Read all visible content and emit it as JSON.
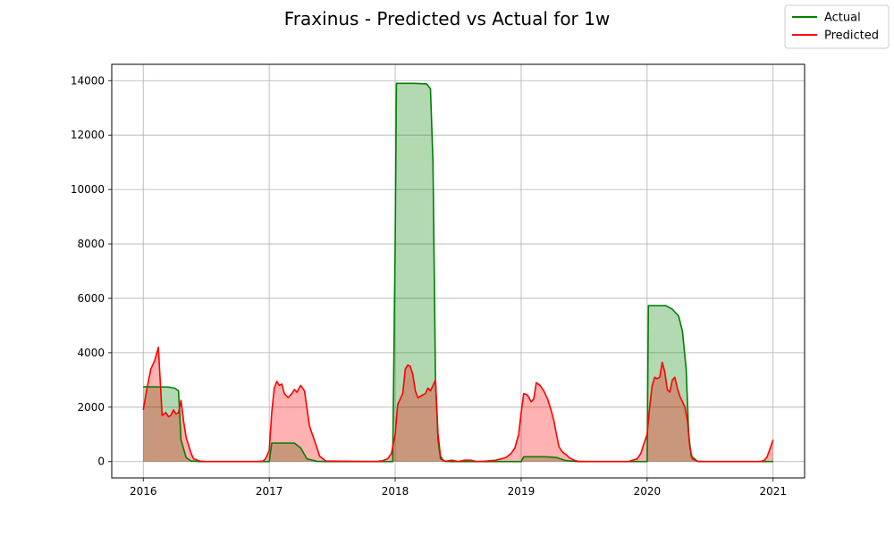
{
  "chart_data": {
    "type": "area",
    "title": "Fraxinus - Predicted vs Actual for 1w",
    "xlabel": "",
    "ylabel": "",
    "xlim": [
      2015.75,
      2021.25
    ],
    "ylim": [
      -600,
      14600
    ],
    "xticks": [
      2016,
      2017,
      2018,
      2019,
      2020,
      2021
    ],
    "xtick_labels": [
      "2016",
      "2017",
      "2018",
      "2019",
      "2020",
      "2021"
    ],
    "yticks": [
      0,
      2000,
      4000,
      6000,
      8000,
      10000,
      12000,
      14000
    ],
    "ytick_labels": [
      "0",
      "2000",
      "4000",
      "6000",
      "8000",
      "10000",
      "12000",
      "14000"
    ],
    "grid": true,
    "legend_position": "top-right",
    "series": [
      {
        "name": "Actual",
        "color": "#008000",
        "fill_color": "#008000",
        "x": [
          2016.0,
          2016.2,
          2016.25,
          2016.28,
          2016.3,
          2016.34,
          2016.38,
          2016.45,
          2016.9,
          2016.98,
          2017.0,
          2017.02,
          2017.2,
          2017.25,
          2017.3,
          2017.38,
          2017.45,
          2017.95,
          2017.98,
          2018.0,
          2018.01,
          2018.03,
          2018.15,
          2018.25,
          2018.28,
          2018.3,
          2018.32,
          2018.34,
          2018.36,
          2018.4,
          2018.45,
          2018.95,
          2018.98,
          2019.0,
          2019.02,
          2019.2,
          2019.28,
          2019.35,
          2019.45,
          2019.95,
          2019.98,
          2020.0,
          2020.01,
          2020.03,
          2020.15,
          2020.2,
          2020.25,
          2020.28,
          2020.31,
          2020.33,
          2020.35,
          2020.4,
          2020.45,
          2021.0
        ],
        "y": [
          2750,
          2740,
          2700,
          2600,
          800,
          150,
          20,
          0,
          0,
          0,
          0,
          680,
          680,
          500,
          100,
          10,
          0,
          0,
          0,
          8000,
          13900,
          13900,
          13900,
          13880,
          13700,
          11000,
          3000,
          800,
          100,
          10,
          0,
          0,
          0,
          0,
          180,
          180,
          150,
          40,
          0,
          0,
          0,
          0,
          5730,
          5730,
          5730,
          5600,
          5350,
          4800,
          3400,
          1000,
          200,
          10,
          0,
          0
        ]
      },
      {
        "name": "Predicted",
        "color": "#ff0000",
        "fill_color": "#ff0000",
        "x": [
          2016.0,
          2016.03,
          2016.06,
          2016.09,
          2016.12,
          2016.15,
          2016.18,
          2016.2,
          2016.22,
          2016.24,
          2016.26,
          2016.28,
          2016.3,
          2016.32,
          2016.34,
          2016.36,
          2016.38,
          2016.4,
          2016.45,
          2016.5,
          2016.9,
          2016.95,
          2016.97,
          2017.0,
          2017.02,
          2017.04,
          2017.06,
          2017.08,
          2017.1,
          2017.12,
          2017.15,
          2017.18,
          2017.2,
          2017.22,
          2017.25,
          2017.28,
          2017.32,
          2017.35,
          2017.38,
          2017.4,
          2017.45,
          2017.85,
          2017.9,
          2017.94,
          2017.97,
          2018.0,
          2018.02,
          2018.04,
          2018.06,
          2018.08,
          2018.1,
          2018.12,
          2018.14,
          2018.16,
          2018.18,
          2018.2,
          2018.22,
          2018.24,
          2018.26,
          2018.28,
          2018.3,
          2018.32,
          2018.34,
          2018.36,
          2018.38,
          2018.4,
          2018.45,
          2018.5,
          2018.55,
          2018.6,
          2018.65,
          2018.7,
          2018.8,
          2018.88,
          2018.92,
          2018.95,
          2018.98,
          2019.0,
          2019.02,
          2019.05,
          2019.08,
          2019.1,
          2019.12,
          2019.15,
          2019.18,
          2019.21,
          2019.24,
          2019.26,
          2019.28,
          2019.3,
          2019.32,
          2019.34,
          2019.36,
          2019.38,
          2019.42,
          2019.45,
          2019.5,
          2019.85,
          2019.92,
          2019.95,
          2019.97,
          2020.0,
          2020.02,
          2020.04,
          2020.06,
          2020.08,
          2020.1,
          2020.12,
          2020.14,
          2020.16,
          2020.18,
          2020.2,
          2020.22,
          2020.24,
          2020.26,
          2020.28,
          2020.3,
          2020.32,
          2020.34,
          2020.36,
          2020.4,
          2020.45,
          2020.9,
          2020.93,
          2020.95,
          2020.97,
          2021.0
        ],
        "y": [
          1900,
          2700,
          3400,
          3700,
          4200,
          1700,
          1800,
          1650,
          1700,
          1900,
          1750,
          1800,
          2250,
          1500,
          900,
          600,
          300,
          100,
          20,
          0,
          0,
          20,
          100,
          400,
          1800,
          2700,
          2950,
          2800,
          2850,
          2500,
          2350,
          2500,
          2650,
          2550,
          2800,
          2600,
          1300,
          900,
          500,
          200,
          20,
          0,
          30,
          100,
          300,
          1000,
          2100,
          2300,
          2500,
          3400,
          3550,
          3500,
          3200,
          2600,
          2350,
          2400,
          2450,
          2500,
          2700,
          2600,
          2800,
          3000,
          1000,
          200,
          50,
          10,
          50,
          0,
          50,
          50,
          0,
          10,
          50,
          150,
          300,
          500,
          1000,
          1800,
          2500,
          2450,
          2200,
          2300,
          2900,
          2800,
          2600,
          2300,
          1850,
          1500,
          1000,
          550,
          400,
          300,
          250,
          150,
          50,
          10,
          0,
          0,
          100,
          300,
          600,
          1000,
          2000,
          2800,
          3100,
          3050,
          3100,
          3650,
          3300,
          2650,
          2550,
          3000,
          3100,
          2700,
          2400,
          2200,
          2000,
          1500,
          500,
          100,
          10,
          0,
          0,
          50,
          150,
          400,
          800
        ]
      }
    ]
  }
}
